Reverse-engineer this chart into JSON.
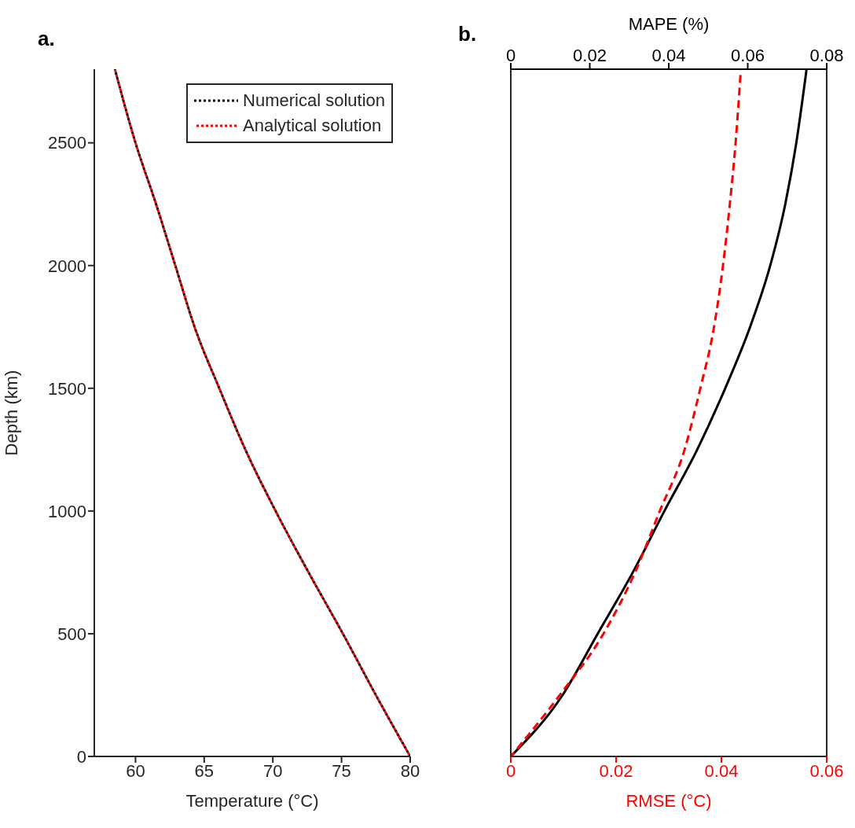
{
  "chart_data": [
    {
      "type": "line",
      "title": "a.",
      "xlabel": "Temperature (°C)",
      "ylabel": "Depth (km)",
      "xlim": [
        57,
        80
      ],
      "xticks": [
        60,
        65,
        70,
        75,
        80
      ],
      "ylim": [
        0,
        2800
      ],
      "yticks": [
        0,
        500,
        1000,
        1500,
        2000,
        2500
      ],
      "legend": "top right",
      "line_style": "dotted",
      "series": [
        {
          "name": "Numerical solution",
          "color": "#000000",
          "x": [
            80,
            77.5,
            75.1,
            72.6,
            70.2,
            68.0,
            66.1,
            64.3,
            62.9,
            61.5,
            60.0,
            58.5
          ],
          "values": [
            0,
            250,
            500,
            750,
            1000,
            1250,
            1500,
            1750,
            2000,
            2250,
            2500,
            2800
          ]
        },
        {
          "name": "Analytical solution",
          "color": "#ff0000",
          "x": [
            80,
            77.5,
            75.1,
            72.6,
            70.2,
            68.0,
            66.1,
            64.3,
            62.9,
            61.5,
            60.0,
            58.5
          ],
          "values": [
            0,
            250,
            500,
            750,
            1000,
            1250,
            1500,
            1750,
            2000,
            2250,
            2500,
            2800
          ]
        }
      ]
    },
    {
      "type": "line",
      "title": "b.",
      "xlabel": "RMSE (°C)",
      "x2label": "MAPE (%)",
      "xlim": [
        0,
        0.06
      ],
      "xticks": [
        0,
        0.02,
        0.04,
        0.06
      ],
      "x2lim": [
        0,
        0.08
      ],
      "x2ticks": [
        0,
        0.02,
        0.04,
        0.06,
        0.08
      ],
      "ylim": [
        0,
        2800
      ],
      "yticks": [
        0,
        500,
        1000,
        1500,
        2000,
        2500
      ],
      "tick_labels": "x",
      "series": [
        {
          "color": "#000000",
          "axis": "x2",
          "line_style": "solid",
          "x": [
            0,
            0.0131,
            0.022,
            0.0309,
            0.0389,
            0.0472,
            0.0543,
            0.0606,
            0.0657,
            0.0695,
            0.0723,
            0.0749
          ],
          "values": [
            0,
            250,
            500,
            750,
            1000,
            1250,
            1500,
            1750,
            2000,
            2250,
            2500,
            2800
          ]
        },
        {
          "color": "#ff0000",
          "line_style": "dashed",
          "x": [
            0,
            0.0093,
            0.0176,
            0.0236,
            0.0283,
            0.033,
            0.036,
            0.0386,
            0.0403,
            0.0416,
            0.0427,
            0.0437
          ],
          "values": [
            0,
            250,
            500,
            750,
            1000,
            1250,
            1500,
            1750,
            2000,
            2250,
            2500,
            2800
          ]
        }
      ]
    }
  ]
}
